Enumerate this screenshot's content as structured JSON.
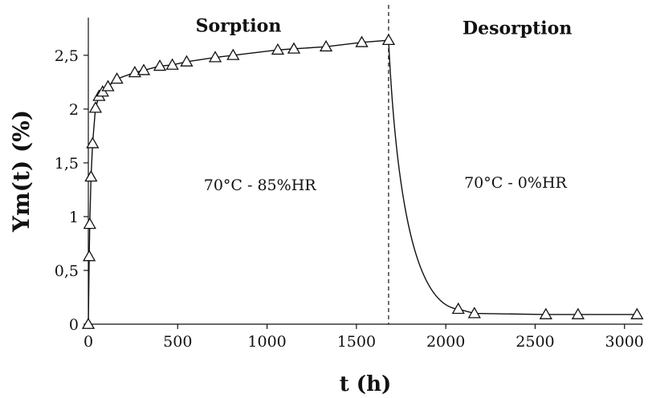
{
  "chart_data": {
    "type": "line",
    "title": "",
    "xlabel": "t (h)",
    "ylabel": "Ym(t)  (%)",
    "xlim": [
      0,
      3100
    ],
    "ylim": [
      0,
      2.85
    ],
    "xticks": [
      0,
      500,
      1000,
      1500,
      2000,
      2500,
      3000
    ],
    "yticks": [
      {
        "value": 0,
        "label": "0"
      },
      {
        "value": 0.5,
        "label": "0,5"
      },
      {
        "value": 1,
        "label": "1"
      },
      {
        "value": 1.5,
        "label": "1,5"
      },
      {
        "value": 2,
        "label": "2"
      },
      {
        "value": 2.5,
        "label": "2,5"
      }
    ],
    "grid": false,
    "divider_x": 1680,
    "marker": "triangle-open",
    "series": [
      {
        "points": [
          [
            0,
            0
          ],
          [
            5,
            0.63
          ],
          [
            8,
            0.93
          ],
          [
            15,
            1.37
          ],
          [
            24,
            1.68
          ],
          [
            40,
            2.01
          ],
          [
            60,
            2.12
          ],
          [
            80,
            2.16
          ],
          [
            110,
            2.21
          ],
          [
            160,
            2.28
          ],
          [
            260,
            2.34
          ],
          [
            310,
            2.36
          ],
          [
            400,
            2.4
          ],
          [
            470,
            2.41
          ],
          [
            550,
            2.44
          ],
          [
            710,
            2.48
          ],
          [
            810,
            2.5
          ],
          [
            1060,
            2.55
          ],
          [
            1150,
            2.56
          ],
          [
            1330,
            2.58
          ],
          [
            1530,
            2.62
          ],
          [
            1680,
            2.64
          ],
          [
            2070,
            0.14
          ],
          [
            2160,
            0.1
          ],
          [
            2560,
            0.09
          ],
          [
            2740,
            0.09
          ],
          [
            3070,
            0.09
          ]
        ]
      }
    ],
    "annotations": [
      {
        "id": "phase-sorption",
        "text": "Sorption",
        "x": 840,
        "y": 2.77
      },
      {
        "id": "phase-desorption",
        "text": "Desorption",
        "x": 2400,
        "y": 2.75
      },
      {
        "id": "condition-sorption",
        "text": "70°C - 85%HR",
        "x": 960,
        "y": 1.3
      },
      {
        "id": "condition-desorption",
        "text": "70°C - 0%HR",
        "x": 2390,
        "y": 1.32
      }
    ]
  }
}
